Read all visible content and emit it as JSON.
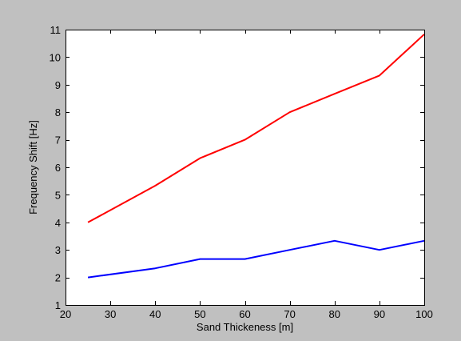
{
  "figure": {
    "background": "#c0c0c0",
    "axes_background": "#ffffff"
  },
  "chart_data": {
    "type": "line",
    "title": "",
    "xlabel": "Sand Thickeness [m]",
    "ylabel": "Frequency Shift [Hz]",
    "xlim": [
      20,
      100
    ],
    "ylim": [
      1,
      11
    ],
    "xticks": [
      20,
      30,
      40,
      50,
      60,
      70,
      80,
      90,
      100
    ],
    "yticks": [
      1,
      2,
      3,
      4,
      5,
      6,
      7,
      8,
      9,
      10,
      11
    ],
    "grid": false,
    "legend": "none",
    "x": [
      25,
      40,
      50,
      60,
      70,
      80,
      90,
      100
    ],
    "series": [
      {
        "color": "#ff0000",
        "values": [
          4.0,
          5.33,
          6.33,
          7.0,
          8.0,
          8.67,
          9.33,
          10.83
        ]
      },
      {
        "color": "#0000ff",
        "values": [
          2.0,
          2.33,
          2.67,
          2.67,
          3.0,
          3.33,
          3.0,
          3.33
        ]
      }
    ]
  }
}
